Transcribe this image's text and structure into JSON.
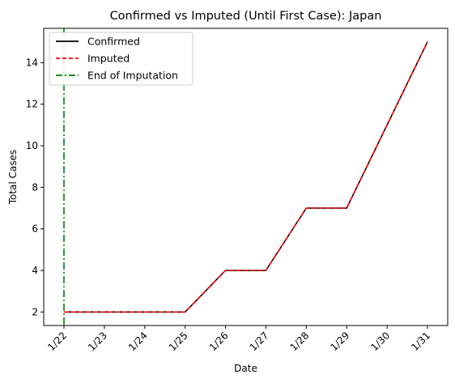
{
  "chart_data": {
    "type": "line",
    "title": "Confirmed vs Imputed (Until First Case): Japan",
    "xlabel": "Date",
    "ylabel": "Total Cases",
    "categories": [
      "1/22",
      "1/23",
      "1/24",
      "1/25",
      "1/26",
      "1/27",
      "1/28",
      "1/29",
      "1/30",
      "1/31"
    ],
    "ylim": [
      1.35,
      15.65
    ],
    "yticks": [
      2,
      4,
      6,
      8,
      10,
      12,
      14
    ],
    "grid": false,
    "legend_position": "top-left",
    "series": [
      {
        "name": "Confirmed",
        "color": "#000000",
        "style": "solid",
        "values": [
          2,
          2,
          2,
          2,
          4,
          4,
          7,
          7,
          11,
          15
        ]
      },
      {
        "name": "Imputed",
        "color": "#ff0000",
        "style": "dashed",
        "values": [
          2,
          2,
          2,
          2,
          4,
          4,
          7,
          7,
          11,
          15
        ]
      }
    ],
    "vline": {
      "name": "End of Imputation",
      "color": "#008000",
      "style": "dashdot",
      "x": "1/22"
    }
  }
}
